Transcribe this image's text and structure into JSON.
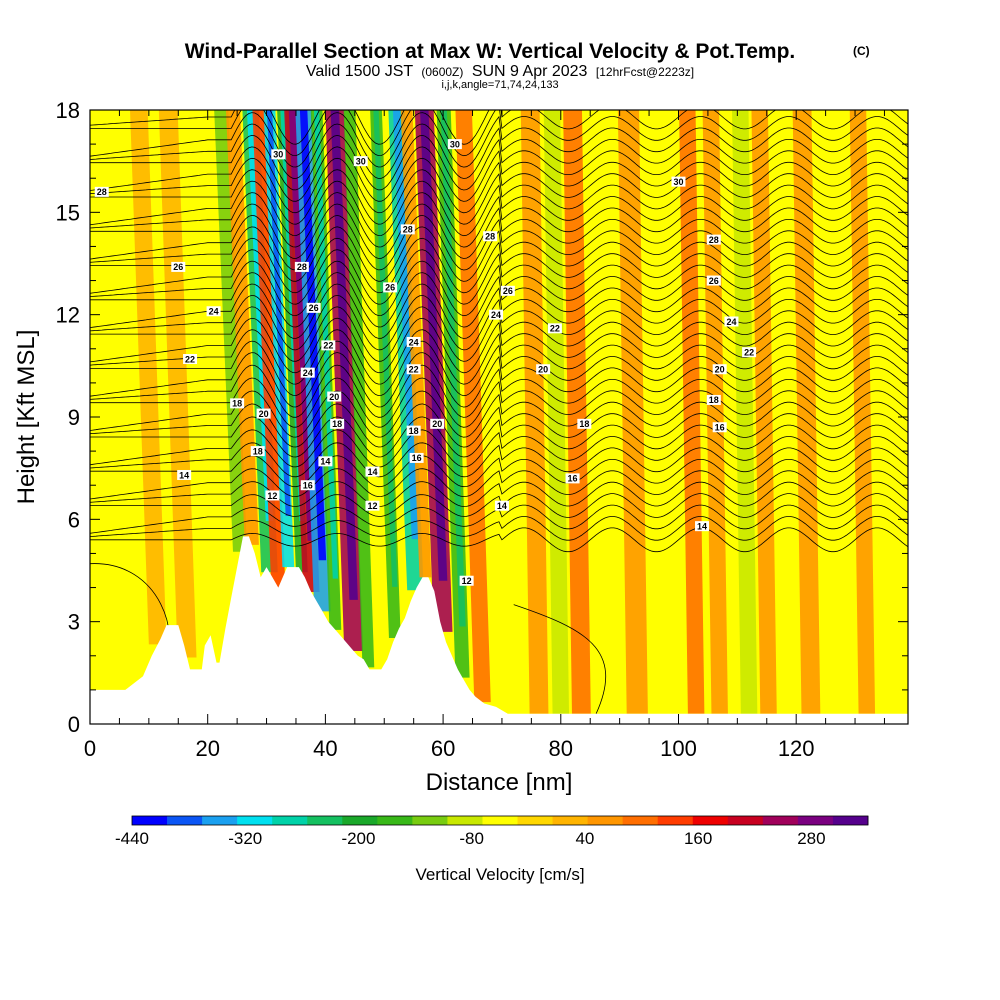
{
  "chart_data": {
    "type": "heatmap",
    "title": "Wind-Parallel Section at Max W: Vertical Velocity & Pot.Temp.",
    "copyright": "(C)",
    "subtitle": {
      "valid_prefix": "Valid 1500 JST",
      "utc": "(0600Z)",
      "date": "SUN 9 Apr 2023",
      "forecast": "[12hrFcst@2223z]"
    },
    "indices": "i,j,k,angle=71,74,24,133",
    "xlabel": "Distance [nm]",
    "ylabel": "Height [Kft MSL]",
    "xlim": [
      0,
      139
    ],
    "ylim": [
      0,
      18
    ],
    "x_ticks": [
      "0",
      "20",
      "40",
      "60",
      "80",
      "100",
      "120"
    ],
    "x_tick_values": [
      0,
      20,
      40,
      60,
      80,
      100,
      120
    ],
    "y_ticks": [
      "0",
      "3",
      "6",
      "9",
      "12",
      "15",
      "18"
    ],
    "y_tick_values": [
      0,
      3,
      6,
      9,
      12,
      15,
      18
    ],
    "colorbar": {
      "label": "Vertical Velocity [cm/s]",
      "tick_labels": [
        "-440",
        "-320",
        "-200",
        "-80",
        "40",
        "160",
        "280"
      ],
      "tick_values": [
        -440,
        -320,
        -200,
        -80,
        40,
        160,
        280
      ],
      "range": [
        -440,
        340
      ],
      "colors": [
        "#0000ff",
        "#0a55f5",
        "#1aa0f0",
        "#00e0f0",
        "#00d2a8",
        "#14c060",
        "#1aa82a",
        "#38b818",
        "#78cc10",
        "#c8e800",
        "#ffff00",
        "#ffd700",
        "#ffb400",
        "#ff9600",
        "#ff6e00",
        "#ff3c00",
        "#ee0000",
        "#c80020",
        "#a0005a",
        "#7a0080",
        "#55008c"
      ]
    },
    "vertical_velocity_bands": [
      {
        "x": 30.5,
        "w": 1.4,
        "v": -220
      },
      {
        "x": 32.0,
        "w": 1.2,
        "v": 150
      },
      {
        "x": 33.7,
        "w": 1.0,
        "v": -300
      },
      {
        "x": 36.0,
        "w": 1.0,
        "v": -200
      },
      {
        "x": 37.6,
        "w": 1.4,
        "v": 200
      },
      {
        "x": 39.5,
        "w": 1.4,
        "v": -360
      },
      {
        "x": 41.7,
        "w": 1.0,
        "v": -180
      },
      {
        "x": 44.8,
        "w": 1.6,
        "v": 240
      },
      {
        "x": 47.3,
        "w": 1.0,
        "v": -150
      },
      {
        "x": 51.8,
        "w": 1.0,
        "v": -160
      },
      {
        "x": 55.3,
        "w": 1.4,
        "v": -260
      },
      {
        "x": 57.0,
        "w": 1.0,
        "v": 60
      },
      {
        "x": 60.0,
        "w": 1.6,
        "v": 230
      },
      {
        "x": 63.3,
        "w": 1.2,
        "v": -160
      },
      {
        "x": 66.7,
        "w": 1.4,
        "v": 100
      },
      {
        "x": 25.5,
        "w": 1.2,
        "v": -120
      },
      {
        "x": 27.5,
        "w": 1.2,
        "v": 60
      },
      {
        "x": 16.5,
        "w": 1.6,
        "v": 40
      },
      {
        "x": 11.5,
        "w": 1.5,
        "v": 30
      },
      {
        "x": 76.3,
        "w": 1.6,
        "v": 60
      },
      {
        "x": 80.0,
        "w": 1.4,
        "v": -80
      },
      {
        "x": 83.5,
        "w": 1.6,
        "v": 80
      },
      {
        "x": 88.0,
        "w": 1.6,
        "v": -50
      },
      {
        "x": 93.0,
        "w": 1.8,
        "v": 60
      },
      {
        "x": 98.0,
        "w": 1.6,
        "v": -60
      },
      {
        "x": 103.0,
        "w": 1.4,
        "v": 80
      },
      {
        "x": 107.0,
        "w": 1.4,
        "v": 60
      },
      {
        "x": 112.0,
        "w": 1.4,
        "v": -80
      },
      {
        "x": 115.3,
        "w": 1.4,
        "v": 60
      },
      {
        "x": 119.0,
        "w": 1.4,
        "v": -60
      },
      {
        "x": 122.5,
        "w": 1.6,
        "v": 60
      },
      {
        "x": 127.5,
        "w": 1.6,
        "v": -60
      },
      {
        "x": 132.0,
        "w": 1.4,
        "v": 50
      }
    ],
    "terrain": [
      [
        0,
        1.0
      ],
      [
        6,
        1.0
      ],
      [
        7.5,
        1.2
      ],
      [
        9,
        1.4
      ],
      [
        10.5,
        2.0
      ],
      [
        12,
        2.5
      ],
      [
        13,
        2.9
      ],
      [
        15,
        2.9
      ],
      [
        16,
        2.3
      ],
      [
        17,
        1.6
      ],
      [
        19,
        1.6
      ],
      [
        19.5,
        2.3
      ],
      [
        20.5,
        2.6
      ],
      [
        21.5,
        1.8
      ],
      [
        22,
        1.8
      ],
      [
        23,
        2.8
      ],
      [
        24,
        3.7
      ],
      [
        25,
        4.6
      ],
      [
        26,
        5.5
      ],
      [
        27,
        5.5
      ],
      [
        28,
        5.0
      ],
      [
        29,
        4.3
      ],
      [
        30,
        4.6
      ],
      [
        31,
        4.3
      ],
      [
        32,
        4.0
      ],
      [
        33.5,
        4.6
      ],
      [
        35.5,
        4.6
      ],
      [
        36.5,
        4.3
      ],
      [
        37.5,
        3.9
      ],
      [
        38.5,
        3.6
      ],
      [
        39.5,
        3.3
      ],
      [
        40.5,
        3.0
      ],
      [
        41.5,
        2.8
      ],
      [
        42.5,
        2.6
      ],
      [
        43.5,
        2.4
      ],
      [
        44.5,
        2.2
      ],
      [
        45.5,
        2.0
      ],
      [
        46.5,
        1.9
      ],
      [
        47.5,
        1.6
      ],
      [
        49.5,
        1.6
      ],
      [
        50.5,
        1.9
      ],
      [
        51.5,
        2.4
      ],
      [
        52.5,
        2.8
      ],
      [
        53.5,
        3.1
      ],
      [
        54.5,
        3.6
      ],
      [
        55.5,
        4.0
      ],
      [
        56.5,
        4.3
      ],
      [
        57.5,
        4.3
      ],
      [
        58.5,
        3.9
      ],
      [
        59.5,
        3.0
      ],
      [
        60.5,
        2.4
      ],
      [
        61.5,
        2.0
      ],
      [
        62.5,
        1.6
      ],
      [
        63.5,
        1.3
      ],
      [
        64.5,
        1.0
      ],
      [
        65.5,
        0.8
      ],
      [
        67,
        0.6
      ],
      [
        69,
        0.5
      ],
      [
        71,
        0.3
      ],
      [
        139,
        0.3
      ]
    ],
    "isentropes": {
      "levels": [
        12,
        14,
        16,
        18,
        20,
        22,
        24,
        26,
        28,
        30
      ],
      "count": 38,
      "base_height": 5.4,
      "spacing": 0.335,
      "labels": [
        {
          "text": "28",
          "x": 2,
          "y": 15.6
        },
        {
          "text": "26",
          "x": 15,
          "y": 13.4
        },
        {
          "text": "24",
          "x": 21,
          "y": 12.1
        },
        {
          "text": "22",
          "x": 17,
          "y": 10.7
        },
        {
          "text": "20",
          "x": 29.5,
          "y": 9.1
        },
        {
          "text": "18",
          "x": 25,
          "y": 9.4
        },
        {
          "text": "18",
          "x": 28.5,
          "y": 8.0
        },
        {
          "text": "14",
          "x": 16,
          "y": 7.3
        },
        {
          "text": "12",
          "x": 31,
          "y": 6.7
        },
        {
          "text": "30",
          "x": 32,
          "y": 16.7
        },
        {
          "text": "28",
          "x": 36,
          "y": 13.4
        },
        {
          "text": "26",
          "x": 38,
          "y": 12.2
        },
        {
          "text": "22",
          "x": 40.5,
          "y": 11.1
        },
        {
          "text": "24",
          "x": 37,
          "y": 10.3
        },
        {
          "text": "20",
          "x": 41.5,
          "y": 9.6
        },
        {
          "text": "18",
          "x": 42,
          "y": 8.8
        },
        {
          "text": "14",
          "x": 40,
          "y": 7.7
        },
        {
          "text": "16",
          "x": 37,
          "y": 7.0
        },
        {
          "text": "30",
          "x": 46,
          "y": 16.5
        },
        {
          "text": "28",
          "x": 54,
          "y": 14.5
        },
        {
          "text": "26",
          "x": 51,
          "y": 12.8
        },
        {
          "text": "24",
          "x": 55,
          "y": 11.2
        },
        {
          "text": "22",
          "x": 55,
          "y": 10.4
        },
        {
          "text": "18",
          "x": 55,
          "y": 8.6
        },
        {
          "text": "20",
          "x": 59,
          "y": 8.8
        },
        {
          "text": "16",
          "x": 55.5,
          "y": 7.8
        },
        {
          "text": "14",
          "x": 48,
          "y": 7.4
        },
        {
          "text": "12",
          "x": 48,
          "y": 6.4
        },
        {
          "text": "30",
          "x": 62,
          "y": 17.0
        },
        {
          "text": "28",
          "x": 68,
          "y": 14.3
        },
        {
          "text": "26",
          "x": 71,
          "y": 12.7
        },
        {
          "text": "24",
          "x": 69,
          "y": 12.0
        },
        {
          "text": "22",
          "x": 79,
          "y": 11.6
        },
        {
          "text": "20",
          "x": 77,
          "y": 10.4
        },
        {
          "text": "18",
          "x": 84,
          "y": 8.8
        },
        {
          "text": "16",
          "x": 82,
          "y": 7.2
        },
        {
          "text": "14",
          "x": 70,
          "y": 6.4
        },
        {
          "text": "12",
          "x": 64,
          "y": 4.2
        },
        {
          "text": "30",
          "x": 100,
          "y": 15.9
        },
        {
          "text": "28",
          "x": 106,
          "y": 14.2
        },
        {
          "text": "26",
          "x": 106,
          "y": 13.0
        },
        {
          "text": "24",
          "x": 109,
          "y": 11.8
        },
        {
          "text": "22",
          "x": 112,
          "y": 10.9
        },
        {
          "text": "20",
          "x": 107,
          "y": 10.4
        },
        {
          "text": "18",
          "x": 106,
          "y": 9.5
        },
        {
          "text": "16",
          "x": 107,
          "y": 8.7
        },
        {
          "text": "14",
          "x": 104,
          "y": 5.8
        }
      ]
    }
  }
}
